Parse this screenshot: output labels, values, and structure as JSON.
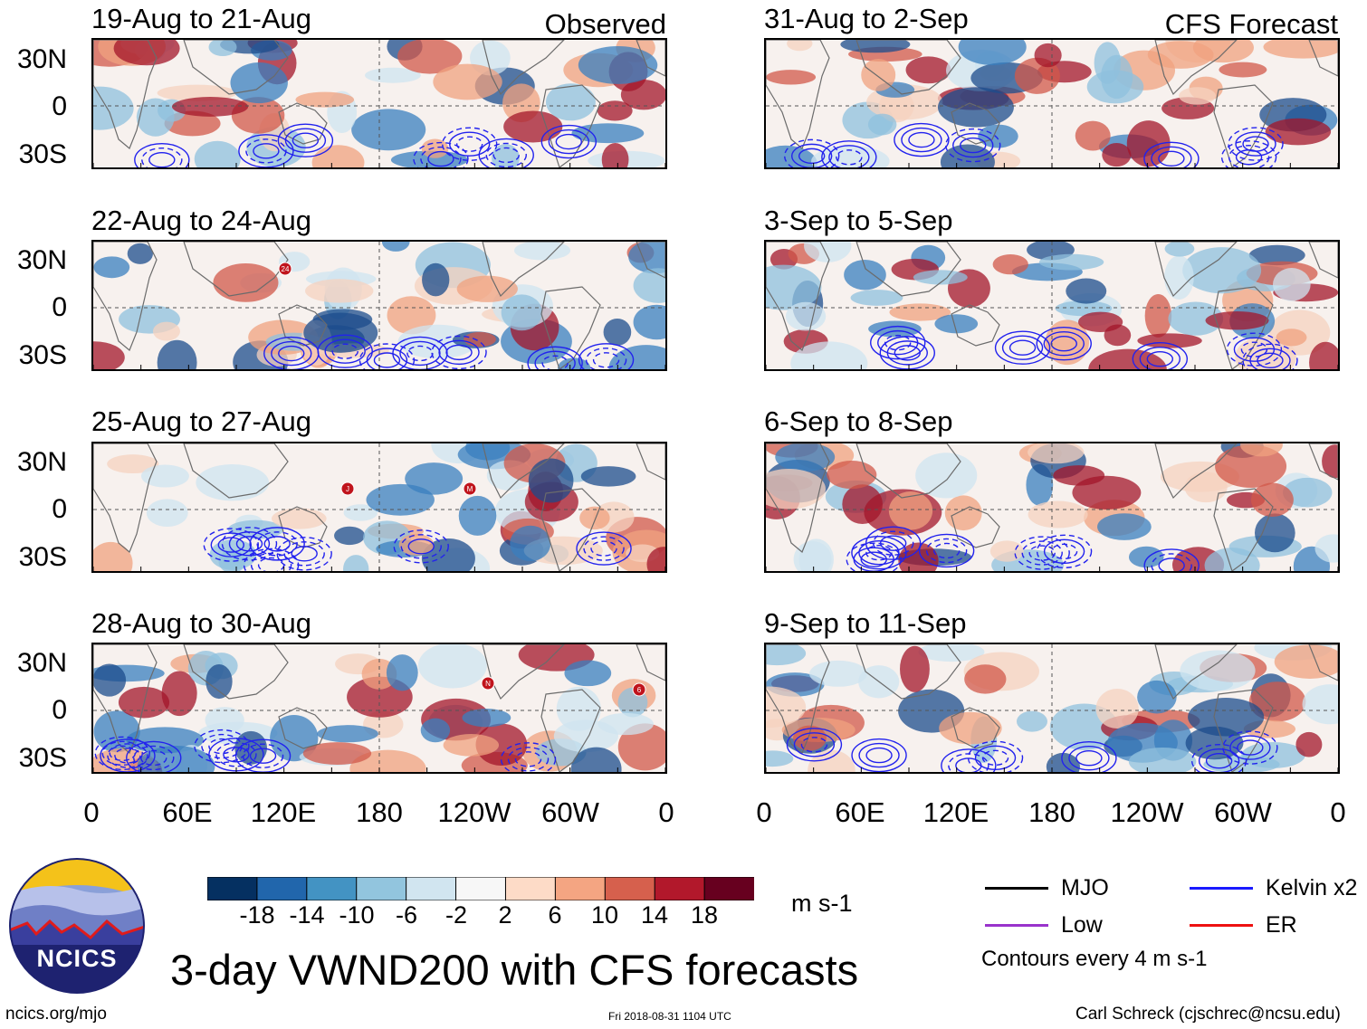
{
  "figure": {
    "title": "3-day VWND200 with CFS forecasts",
    "site_url": "ncics.org/mjo",
    "timestamp": "Fri 2018-08-31 1104 UTC",
    "author": "Carl Schreck (cjschrec@ncsu.edu)",
    "logo_text": "NCICS"
  },
  "tags": {
    "observed": "Observed",
    "forecast": "CFS Forecast"
  },
  "lat_labels": [
    "30N",
    "0",
    "30S"
  ],
  "lon_labels": [
    "0",
    "60E",
    "120E",
    "180",
    "120W",
    "60W",
    "0"
  ],
  "panels": [
    {
      "title": "19-Aug to 21-Aug"
    },
    {
      "title": "22-Aug to 24-Aug"
    },
    {
      "title": "25-Aug to 27-Aug"
    },
    {
      "title": "28-Aug to 30-Aug"
    },
    {
      "title": "31-Aug to 2-Sep"
    },
    {
      "title": "3-Sep to 5-Sep"
    },
    {
      "title": "6-Sep to 8-Sep"
    },
    {
      "title": "9-Sep to 11-Sep"
    }
  ],
  "colorbar": {
    "ticks": [
      "-18",
      "-14",
      "-10",
      "-6",
      "-2",
      "2",
      "6",
      "10",
      "14",
      "18"
    ],
    "units": "m s-1",
    "colors": [
      "#053061",
      "#2166ac",
      "#4393c3",
      "#92c5de",
      "#d1e5f0",
      "#f7f7f7",
      "#fddbc7",
      "#f4a582",
      "#d6604d",
      "#b2182b",
      "#67001f"
    ]
  },
  "legend": {
    "items": [
      {
        "label": "MJO",
        "color": "#000000"
      },
      {
        "label": "Kelvin x2",
        "color": "#1a1aff"
      },
      {
        "label": "Low",
        "color": "#9933cc"
      },
      {
        "label": "ER",
        "color": "#ee1111"
      }
    ],
    "note": "Contours every 4 m s-1"
  },
  "storm_markers": [
    {
      "panel": 1,
      "label": "24"
    },
    {
      "panel": 2,
      "label": "J"
    },
    {
      "panel": 2,
      "label": "M"
    },
    {
      "panel": 3,
      "label": "N"
    },
    {
      "panel": 3,
      "label": "6"
    }
  ]
}
